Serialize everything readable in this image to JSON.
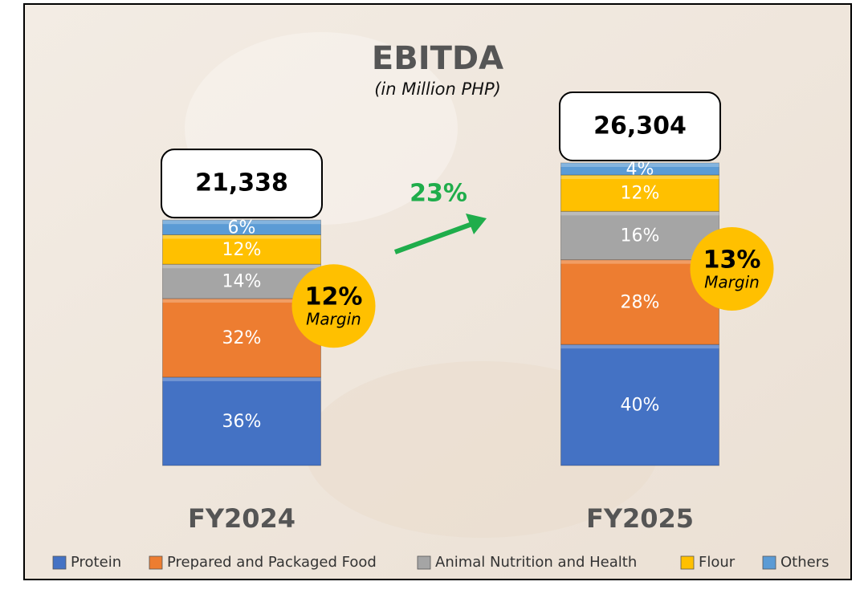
{
  "chart_data": {
    "type": "stacked-bar",
    "title": "EBITDA",
    "subtitle": "(in Million PHP)",
    "categories": [
      "FY2024",
      "FY2025"
    ],
    "series": [
      {
        "name": "Protein",
        "color": "#4472c4",
        "values": [
          36,
          40
        ],
        "value_labels": [
          "36%",
          "40%"
        ]
      },
      {
        "name": "Prepared and Packaged Food",
        "color": "#ed7d31",
        "values": [
          32,
          28
        ],
        "value_labels": [
          "32%",
          "28%"
        ]
      },
      {
        "name": "Animal Nutrition and Health",
        "color": "#a5a5a5",
        "values": [
          14,
          16
        ],
        "value_labels": [
          "14%",
          "16%"
        ]
      },
      {
        "name": "Flour",
        "color": "#ffc000",
        "values": [
          12,
          12
        ],
        "value_labels": [
          "12%",
          "12%"
        ]
      },
      {
        "name": "Others",
        "color": "#5b9bd5",
        "values": [
          6,
          4
        ],
        "value_labels": [
          "6%",
          "4%"
        ]
      }
    ],
    "totals": {
      "values": [
        21338,
        26304
      ],
      "value_labels": [
        "21,338",
        "26,304"
      ]
    },
    "margins": {
      "label": "Margin",
      "values": [
        12,
        13
      ],
      "value_labels": [
        "12%",
        "13%"
      ],
      "color": "#ffc000"
    },
    "growth": {
      "value": 23,
      "label": "23%",
      "color": "#1fad4b"
    }
  }
}
